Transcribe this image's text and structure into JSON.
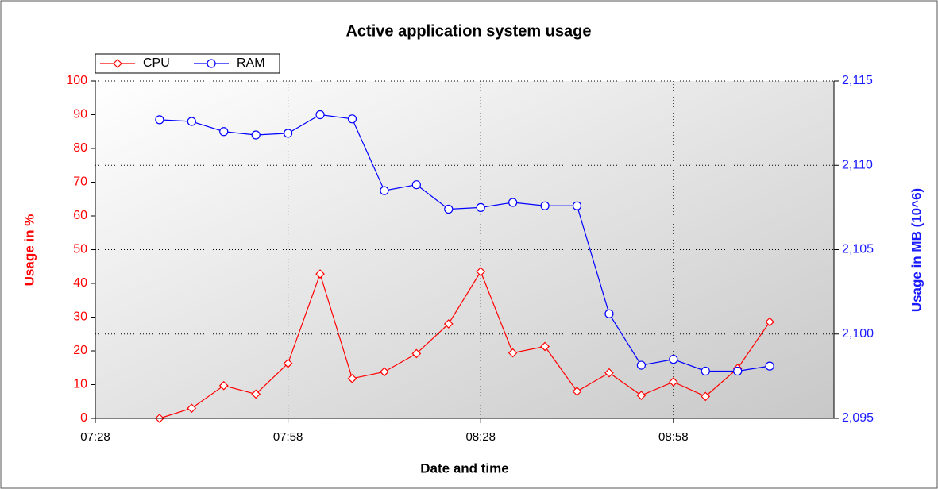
{
  "chart_data": {
    "type": "line",
    "title": "Active application system usage",
    "x_label": "Date and time",
    "y_label": "Usage in %",
    "y2_label": "Usage in MB (10^6)",
    "x": [
      "07:38",
      "07:43",
      "07:48",
      "07:53",
      "07:58",
      "08:03",
      "08:08",
      "08:13",
      "08:18",
      "08:23",
      "08:28",
      "08:33",
      "08:38",
      "08:43",
      "08:48",
      "08:53",
      "08:58",
      "09:03",
      "09:08",
      "09:13"
    ],
    "xlim": [
      "07:28",
      "09:23"
    ],
    "xticks": [
      "07:28",
      "07:58",
      "08:28",
      "08:58"
    ],
    "ylim": [
      0,
      100
    ],
    "yticks": [
      0,
      10,
      20,
      30,
      40,
      50,
      60,
      70,
      80,
      90,
      100
    ],
    "y2lim": [
      2095,
      2115
    ],
    "y2ticks": [
      {
        "value": 2095,
        "label": "2,095"
      },
      {
        "value": 2100,
        "label": "2,100"
      },
      {
        "value": 2105,
        "label": "2,105"
      },
      {
        "value": 2110,
        "label": "2,110"
      },
      {
        "value": 2115,
        "label": "2,115"
      }
    ],
    "grid": true,
    "legend": "top-left",
    "series": [
      {
        "name": "CPU",
        "color": "#ff0000",
        "marker": "diamond",
        "values": [
          0,
          3,
          9.7,
          7.2,
          16.3,
          42.8,
          11.8,
          13.8,
          19.2,
          28,
          43.5,
          19.4,
          21.3,
          8,
          13.5,
          6.8,
          10.8,
          6.5,
          14.8,
          28.6
        ]
      },
      {
        "name": "RAM",
        "color": "#0000ff",
        "marker": "circle",
        "axis": "y2",
        "values": [
          2112.7,
          2112.6,
          2112.0,
          2111.8,
          2111.9,
          2113.0,
          2112.75,
          2108.5,
          2108.85,
          2107.4,
          2107.5,
          2107.8,
          2107.6,
          2107.6,
          2101.2,
          2098.15,
          2098.5,
          2097.8,
          2097.8,
          2098.1
        ]
      }
    ]
  }
}
